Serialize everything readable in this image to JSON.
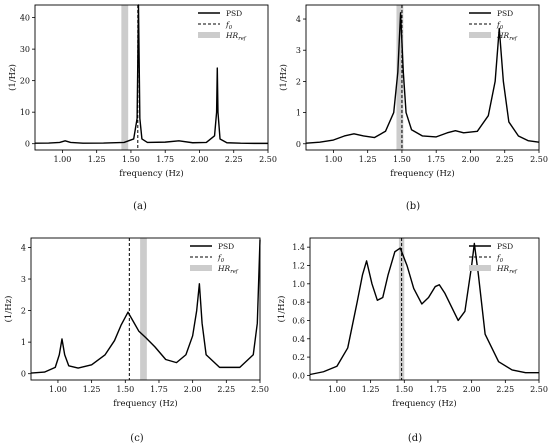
{
  "figure": {
    "captions": [
      "(a)",
      "(b)",
      "(c)",
      "(d)"
    ],
    "legend_entries": [
      "PSD",
      "f0",
      "HRref"
    ]
  },
  "chart_data": [
    {
      "type": "line",
      "caption": "(a)",
      "title": "",
      "xlabel": "frequency (Hz)",
      "ylabel": "(1/Hz)",
      "xlim": [
        0.8,
        2.5
      ],
      "ylim": [
        -2,
        44
      ],
      "xticks": [
        1.0,
        1.25,
        1.5,
        1.75,
        2.0,
        2.25,
        2.5
      ],
      "xtick_labels": [
        "1.00",
        "1.25",
        "1.50",
        "1.75",
        "2.00",
        "2.25",
        "2.50"
      ],
      "yticks": [
        0,
        10,
        20,
        30,
        40
      ],
      "ytick_labels": [
        "0",
        "10",
        "20",
        "30",
        "40"
      ],
      "grid": false,
      "legend_position": "top-right",
      "series": [
        {
          "name": "PSD",
          "style": "solid",
          "color": "#000000",
          "x": [
            0.8,
            0.9,
            0.98,
            1.02,
            1.06,
            1.15,
            1.3,
            1.45,
            1.52,
            1.545,
            1.555,
            1.565,
            1.58,
            1.62,
            1.75,
            1.85,
            1.95,
            2.05,
            2.11,
            2.125,
            2.13,
            2.135,
            2.15,
            2.2,
            2.3,
            2.4,
            2.5
          ],
          "y": [
            0.15,
            0.2,
            0.4,
            0.9,
            0.4,
            0.15,
            0.2,
            0.4,
            1.5,
            8,
            44,
            8,
            1.5,
            0.4,
            0.5,
            0.9,
            0.3,
            0.4,
            2.5,
            10,
            24,
            10,
            1.5,
            0.3,
            0.15,
            0.1,
            0.1
          ]
        }
      ],
      "vlines": [
        {
          "name": "f0",
          "x": 1.55,
          "style": "dashed"
        }
      ],
      "bands": [
        {
          "name": "HRref",
          "x0": 1.43,
          "x1": 1.48,
          "color": "#cccccc"
        }
      ]
    },
    {
      "type": "line",
      "caption": "(b)",
      "title": "",
      "xlabel": "frequency (Hz)",
      "ylabel": "(1/Hz)",
      "xlim": [
        0.8,
        2.5
      ],
      "ylim": [
        -0.2,
        4.45
      ],
      "xticks": [
        1.0,
        1.25,
        1.5,
        1.75,
        2.0,
        2.25,
        2.5
      ],
      "xtick_labels": [
        "1.00",
        "1.25",
        "1.50",
        "1.75",
        "2.00",
        "2.25",
        "2.50"
      ],
      "yticks": [
        0,
        1,
        2,
        3,
        4
      ],
      "ytick_labels": [
        "0",
        "1",
        "2",
        "3",
        "4"
      ],
      "grid": false,
      "legend_position": "top-right",
      "series": [
        {
          "name": "PSD",
          "style": "solid",
          "color": "#000000",
          "x": [
            0.8,
            0.9,
            1.0,
            1.08,
            1.15,
            1.22,
            1.3,
            1.38,
            1.44,
            1.47,
            1.49,
            1.51,
            1.53,
            1.57,
            1.65,
            1.75,
            1.83,
            1.89,
            1.95,
            2.05,
            2.13,
            2.18,
            2.21,
            2.24,
            2.28,
            2.35,
            2.42,
            2.5
          ],
          "y": [
            0.02,
            0.05,
            0.12,
            0.25,
            0.32,
            0.25,
            0.2,
            0.4,
            1.0,
            2.3,
            4.2,
            2.3,
            1.0,
            0.45,
            0.25,
            0.22,
            0.35,
            0.42,
            0.35,
            0.4,
            0.9,
            2.0,
            3.7,
            2.0,
            0.7,
            0.25,
            0.1,
            0.05
          ]
        }
      ],
      "vlines": [
        {
          "name": "f0",
          "x": 1.5,
          "style": "dashed"
        }
      ],
      "bands": [
        {
          "name": "HRref",
          "x0": 1.46,
          "x1": 1.51,
          "color": "#cccccc"
        }
      ]
    },
    {
      "type": "line",
      "caption": "(c)",
      "title": "",
      "xlabel": "frequency (Hz)",
      "ylabel": "(1/Hz)",
      "xlim": [
        0.8,
        2.5
      ],
      "ylim": [
        -0.2,
        4.3
      ],
      "xticks": [
        1.0,
        1.25,
        1.5,
        1.75,
        2.0,
        2.25,
        2.5
      ],
      "xtick_labels": [
        "1.00",
        "1.25",
        "1.50",
        "1.75",
        "2.00",
        "2.25",
        "2.50"
      ],
      "yticks": [
        0,
        1,
        2,
        3,
        4
      ],
      "ytick_labels": [
        "0",
        "1",
        "2",
        "3",
        "4"
      ],
      "grid": false,
      "legend_position": "top-right",
      "series": [
        {
          "name": "PSD",
          "style": "solid",
          "color": "#000000",
          "x": [
            0.8,
            0.9,
            0.98,
            1.01,
            1.03,
            1.05,
            1.08,
            1.15,
            1.25,
            1.35,
            1.42,
            1.47,
            1.52,
            1.56,
            1.6,
            1.65,
            1.72,
            1.8,
            1.88,
            1.95,
            2.0,
            2.03,
            2.05,
            2.07,
            2.1,
            2.2,
            2.35,
            2.45,
            2.48,
            2.5
          ],
          "y": [
            0.02,
            0.05,
            0.2,
            0.6,
            1.1,
            0.6,
            0.25,
            0.18,
            0.28,
            0.6,
            1.05,
            1.55,
            1.95,
            1.65,
            1.35,
            1.15,
            0.85,
            0.45,
            0.35,
            0.6,
            1.2,
            2.0,
            2.85,
            1.6,
            0.6,
            0.2,
            0.2,
            0.6,
            1.6,
            4.25
          ]
        }
      ],
      "vlines": [
        {
          "name": "f0",
          "x": 1.53,
          "style": "dashed"
        }
      ],
      "bands": [
        {
          "name": "HRref",
          "x0": 1.61,
          "x1": 1.66,
          "color": "#cccccc"
        }
      ]
    },
    {
      "type": "line",
      "caption": "(d)",
      "title": "",
      "xlabel": "frequency (Hz)",
      "ylabel": "(1/Hz)",
      "xlim": [
        0.8,
        2.5
      ],
      "ylim": [
        -0.05,
        1.5
      ],
      "xticks": [
        1.0,
        1.25,
        1.5,
        1.75,
        2.0,
        2.25,
        2.5
      ],
      "xtick_labels": [
        "1.00",
        "1.25",
        "1.50",
        "1.75",
        "2.00",
        "2.25",
        "2.50"
      ],
      "yticks": [
        0.0,
        0.2,
        0.4,
        0.6,
        0.8,
        1.0,
        1.2,
        1.4
      ],
      "ytick_labels": [
        "0.0",
        "0.2",
        "0.4",
        "0.6",
        "0.8",
        "1.0",
        "1.2",
        "1.4"
      ],
      "grid": false,
      "legend_position": "top-right",
      "series": [
        {
          "name": "PSD",
          "style": "solid",
          "color": "#000000",
          "x": [
            0.8,
            0.9,
            1.0,
            1.08,
            1.15,
            1.19,
            1.22,
            1.26,
            1.3,
            1.34,
            1.38,
            1.43,
            1.47,
            1.52,
            1.57,
            1.63,
            1.68,
            1.73,
            1.76,
            1.8,
            1.85,
            1.9,
            1.95,
            2.0,
            2.02,
            2.05,
            2.1,
            2.2,
            2.3,
            2.4,
            2.5
          ],
          "y": [
            0.01,
            0.04,
            0.1,
            0.3,
            0.8,
            1.1,
            1.25,
            1.0,
            0.82,
            0.85,
            1.1,
            1.35,
            1.39,
            1.2,
            0.95,
            0.78,
            0.85,
            0.97,
            0.99,
            0.9,
            0.75,
            0.6,
            0.7,
            1.2,
            1.44,
            1.1,
            0.45,
            0.15,
            0.06,
            0.03,
            0.03
          ]
        }
      ],
      "vlines": [
        {
          "name": "f0",
          "x": 1.48,
          "style": "dashed"
        }
      ],
      "bands": [
        {
          "name": "HRref",
          "x0": 1.46,
          "x1": 1.5,
          "color": "#cccccc"
        }
      ]
    }
  ]
}
